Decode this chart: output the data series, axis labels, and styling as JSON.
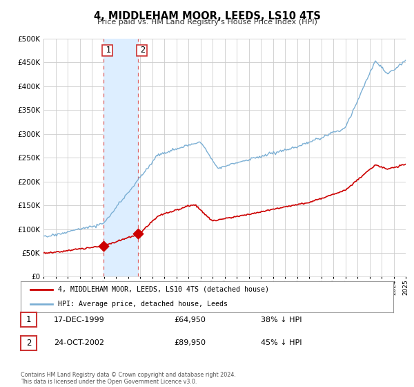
{
  "title": "4, MIDDLEHAM MOOR, LEEDS, LS10 4TS",
  "subtitle": "Price paid vs. HM Land Registry's House Price Index (HPI)",
  "legend_line1": "4, MIDDLEHAM MOOR, LEEDS, LS10 4TS (detached house)",
  "legend_line2": "HPI: Average price, detached house, Leeds",
  "transaction1_date": "17-DEC-1999",
  "transaction1_price": "£64,950",
  "transaction1_hpi": "38% ↓ HPI",
  "transaction2_date": "24-OCT-2002",
  "transaction2_price": "£89,950",
  "transaction2_hpi": "45% ↓ HPI",
  "footnote": "Contains HM Land Registry data © Crown copyright and database right 2024.\nThis data is licensed under the Open Government Licence v3.0.",
  "property_color": "#cc0000",
  "hpi_color": "#7bafd4",
  "transaction1_x": 1999.96,
  "transaction1_y": 64950,
  "transaction2_x": 2002.81,
  "transaction2_y": 89950,
  "vline1_x": 1999.96,
  "vline2_x": 2002.81,
  "shade_color": "#ddeeff",
  "ylim": [
    0,
    500000
  ],
  "xlim": [
    1995,
    2025
  ],
  "background_color": "#ffffff",
  "grid_color": "#cccccc"
}
